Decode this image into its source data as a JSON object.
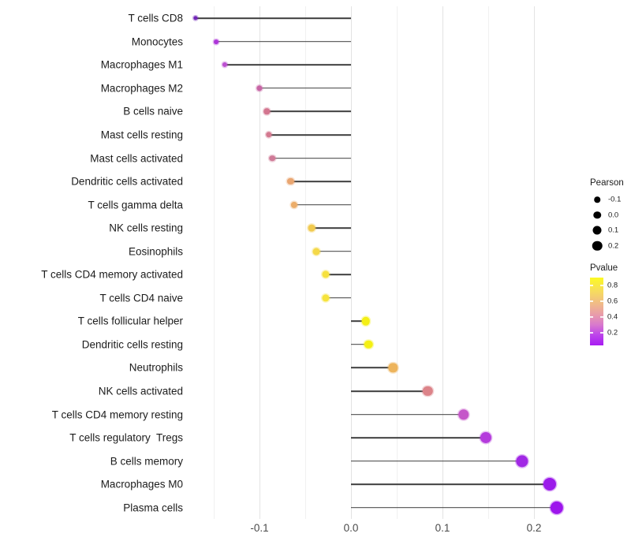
{
  "chart_data": {
    "type": "lollipop",
    "orientation": "horizontal",
    "xlabel": "",
    "ylabel": "",
    "x_axis": {
      "major_ticks": [
        -0.1,
        0.0,
        0.1,
        0.2
      ],
      "major_tick_labels": [
        "-0.1",
        "0.0",
        "0.1",
        "0.2"
      ],
      "minor_ticks": [
        -0.15,
        -0.05,
        0.05,
        0.15
      ],
      "range": [
        -0.18,
        0.215
      ],
      "grid": true
    },
    "points": [
      {
        "label": "T cells CD8",
        "pearson": -0.17,
        "color": "#7226B8"
      },
      {
        "label": "Monocytes",
        "pearson": -0.147,
        "color": "#AD35D9"
      },
      {
        "label": "Macrophages M1",
        "pearson": -0.138,
        "color": "#BC50D1"
      },
      {
        "label": "Macrophages M2",
        "pearson": -0.1,
        "color": "#C765A5"
      },
      {
        "label": "B cells naive",
        "pearson": -0.092,
        "color": "#D3758F"
      },
      {
        "label": "Mast cells resting",
        "pearson": -0.09,
        "color": "#D3798F"
      },
      {
        "label": "Mast cells activated",
        "pearson": -0.086,
        "color": "#CF7A97"
      },
      {
        "label": "Dendritic cells activated",
        "pearson": -0.066,
        "color": "#E9A671"
      },
      {
        "label": "T cells gamma delta",
        "pearson": -0.062,
        "color": "#ECAD69"
      },
      {
        "label": "NK cells resting",
        "pearson": -0.043,
        "color": "#F1CA4F"
      },
      {
        "label": "Eosinophils",
        "pearson": -0.038,
        "color": "#F4D848"
      },
      {
        "label": "T cells CD4 memory activated",
        "pearson": -0.028,
        "color": "#F6E13E"
      },
      {
        "label": "T cells CD4 naive",
        "pearson": -0.028,
        "color": "#F6E33C"
      },
      {
        "label": "T cells follicular helper",
        "pearson": 0.016,
        "color": "#F4EF16"
      },
      {
        "label": "Dendritic cells resting",
        "pearson": 0.019,
        "color": "#F4F013"
      },
      {
        "label": "Neutrophils",
        "pearson": 0.046,
        "color": "#EDB45C"
      },
      {
        "label": "NK cells activated",
        "pearson": 0.084,
        "color": "#DC8389"
      },
      {
        "label": "T cells CD4 memory resting",
        "pearson": 0.123,
        "color": "#C556C9"
      },
      {
        "label": "T cells regulatory  Tregs",
        "pearson": 0.147,
        "color": "#B43BDC"
      },
      {
        "label": "B cells memory",
        "pearson": 0.187,
        "color": "#A128E5"
      },
      {
        "label": "Macrophages M0",
        "pearson": 0.217,
        "color": "#9B1BEA"
      },
      {
        "label": "Plasma cells",
        "pearson": 0.225,
        "color": "#9D15EC"
      }
    ],
    "legend_size": {
      "title": "Pearson",
      "items": [
        {
          "label": "-0.1",
          "size": 7.5
        },
        {
          "label": "0.0",
          "size": 9.5
        },
        {
          "label": "0.1",
          "size": 11
        },
        {
          "label": "0.2",
          "size": 12.5
        }
      ]
    },
    "legend_color": {
      "title": "Pvalue",
      "tick_labels": [
        "0.8",
        "0.6",
        "0.4",
        "0.2"
      ],
      "gradient_stops": [
        {
          "pos": 0,
          "color": "#FCFA23"
        },
        {
          "pos": 20,
          "color": "#F6DC5E"
        },
        {
          "pos": 40,
          "color": "#F0B88B"
        },
        {
          "pos": 55,
          "color": "#E89BAB"
        },
        {
          "pos": 70,
          "color": "#D878CE"
        },
        {
          "pos": 85,
          "color": "#BC43EB"
        },
        {
          "pos": 100,
          "color": "#A81BF2"
        }
      ]
    },
    "style": {
      "stem_color": "#3d3d3d",
      "grid_major_color": "#e3e3e3",
      "grid_minor_color": "#f0f0f0",
      "background": "#ffffff"
    }
  }
}
